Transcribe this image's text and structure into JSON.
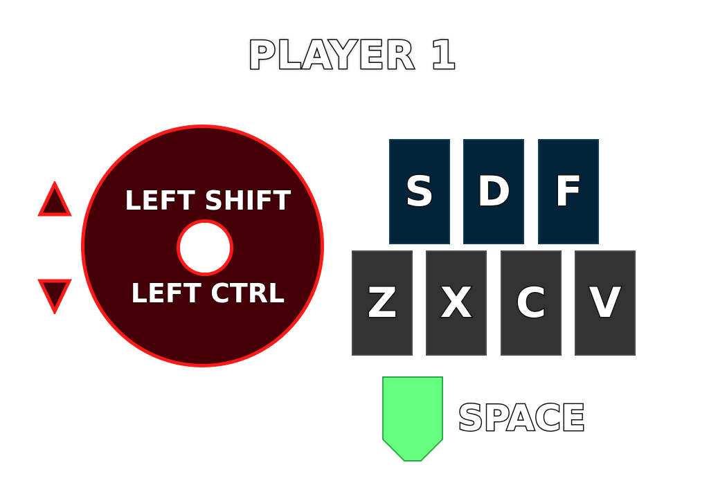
{
  "title": "PLAYER 1",
  "joystick": {
    "up_label": "LEFT SHIFT",
    "down_label": "LEFT CTRL",
    "up_arrow_icon": "triangle-up-icon",
    "down_arrow_icon": "triangle-down-icon",
    "ring_color": "#ff1a1a",
    "fill_color": "#450007"
  },
  "keys": {
    "top_row": [
      "S",
      "D",
      "F"
    ],
    "bottom_row": [
      "Z",
      "X",
      "C",
      "V"
    ],
    "top_color": "#022339",
    "bottom_color": "#333333"
  },
  "space": {
    "label": "SPACE",
    "button_color": "#66ff80"
  }
}
